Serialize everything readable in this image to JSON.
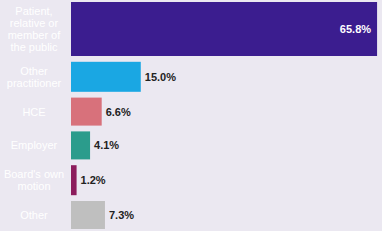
{
  "chart_data": {
    "type": "bar",
    "orientation": "horizontal",
    "categories": [
      "Patient, relative or member of the public",
      "Other practitioner",
      "HCE",
      "Employer",
      "Board's own motion",
      "Other"
    ],
    "values": [
      65.8,
      15.0,
      6.6,
      4.1,
      1.2,
      7.3
    ],
    "value_labels": [
      "65.8%",
      "15.0%",
      "6.6%",
      "4.1%",
      "1.2%",
      "7.3%"
    ],
    "colors": [
      "#3b1d8f",
      "#1aa7e3",
      "#d8717b",
      "#2b9c8c",
      "#8c1c5c",
      "#bfbfbf"
    ],
    "xlim": [
      0,
      66
    ],
    "data_labels": true,
    "tick_labels": "y",
    "grid": false
  }
}
